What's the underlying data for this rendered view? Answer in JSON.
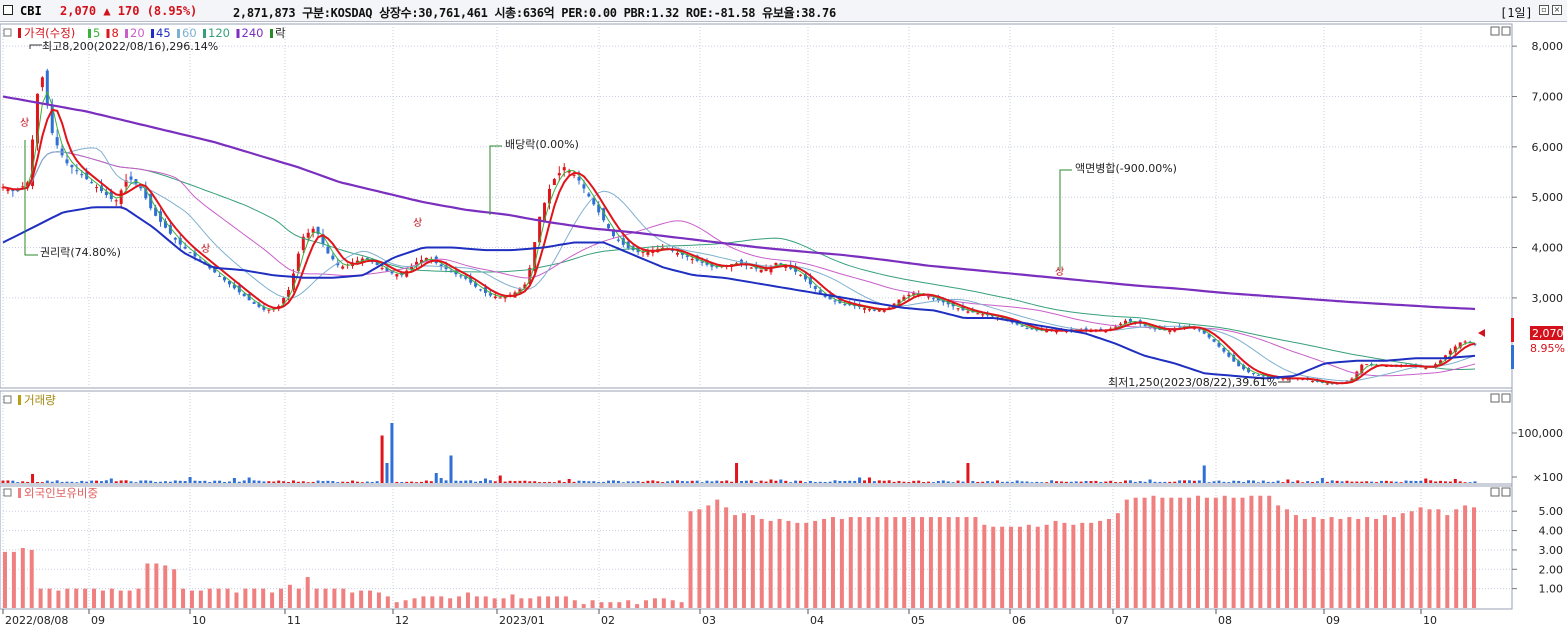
{
  "header": {
    "ticker": "CBI",
    "price_text": "2,070 ▲ 170 (8.95%)",
    "info_text": "2,871,873  구분:KOSDAQ 상장수:30,761,461 시총:636억 PER:0.00 PBR:1.32 ROE:-81.58 유보율:38.76",
    "period": "[1일]",
    "price_color": "#d3111b"
  },
  "legend": {
    "price_label": "가격(수정)",
    "ma_labels": [
      "5",
      "8",
      "20",
      "45",
      "60",
      "120",
      "240"
    ],
    "ma_colors": [
      "#3bb13b",
      "#e0141b",
      "#c95fc9",
      "#1f2fbf",
      "#7fb0cf",
      "#37a07a",
      "#7a2fbf"
    ],
    "fall_label": "락",
    "volume_label": "거래량",
    "foreign_label": "외국인보유비중"
  },
  "annotations": {
    "high": "최고8,200(2022/08/16),296.14%",
    "low": "최저1,250(2023/08/22),39.61%",
    "rights": "권리락(74.80%)",
    "dividend": "배당락(0.00%)",
    "par_merge": "액면병합(-900.00%)",
    "up_marker": "상"
  },
  "right_box": {
    "price": "2,070",
    "percent": "8.95%"
  },
  "colors": {
    "up": "#e0141b",
    "down": "#2f6fd6",
    "foreign_bar": "#f07f7f",
    "grid": "#c9cfe3"
  },
  "chart_data": [
    {
      "type": "line",
      "name": "price panel",
      "x_tick_labels": [
        "2022/08/08",
        "09",
        "10",
        "11",
        "12",
        "2023/01",
        "02",
        "03",
        "04",
        "05",
        "06",
        "07",
        "08",
        "09",
        "10"
      ],
      "y_tick_labels": [
        "8,000",
        "7,000",
        "6,000",
        "5,000",
        "4,000",
        "3,000"
      ],
      "ylim": [
        1250,
        8400
      ],
      "close_approx": [
        5200,
        5100,
        5300,
        7600,
        6200,
        5700,
        5500,
        5300,
        5100,
        4900,
        5400,
        5200,
        4700,
        4400,
        4100,
        3900,
        3700,
        3500,
        3300,
        3100,
        2900,
        2750,
        2800,
        3200,
        4200,
        4400,
        3900,
        3600,
        3700,
        3800,
        3650,
        3500,
        3450,
        3700,
        3800,
        3650,
        3500,
        3400,
        3200,
        3050,
        3000,
        3100,
        3300,
        4600,
        5300,
        5600,
        5400,
        5000,
        4600,
        4200,
        4000,
        3900,
        3950,
        4000,
        3900,
        3800,
        3700,
        3600,
        3650,
        3700,
        3600,
        3550,
        3700,
        3600,
        3450,
        3200,
        3000,
        2900,
        2850,
        2800,
        2750,
        2800,
        3000,
        3100,
        3050,
        2950,
        2850,
        2750,
        2700,
        2650,
        2600,
        2500,
        2400,
        2350,
        2350,
        2350,
        2350,
        2350,
        2350,
        2400,
        2550,
        2500,
        2400,
        2350,
        2400,
        2450,
        2350,
        2150,
        1900,
        1650,
        1500,
        1450,
        1400,
        1400,
        1400,
        1350,
        1300,
        1300,
        1350,
        1700,
        1650,
        1650,
        1650,
        1650,
        1600,
        1700,
        1950,
        2150,
        2070
      ],
      "ma240_approx": [
        7000,
        6850,
        6700,
        6500,
        6300,
        6100,
        5850,
        5600,
        5300,
        5100,
        4900,
        4750,
        4650,
        4500,
        4380,
        4300,
        4200,
        4100,
        4000,
        3920,
        3850,
        3750,
        3640,
        3560,
        3480,
        3400,
        3320,
        3240,
        3180,
        3100,
        3040,
        2980,
        2920,
        2870,
        2820,
        2780
      ],
      "ma45_approx": [
        4100,
        4400,
        4700,
        4800,
        4800,
        4400,
        3900,
        3600,
        3550,
        3450,
        3400,
        3400,
        3450,
        3800,
        4000,
        4000,
        3950,
        3950,
        4000,
        4100,
        4100,
        3850,
        3600,
        3450,
        3400,
        3300,
        3200,
        3100,
        3000,
        2900,
        2800,
        2750,
        2600,
        2600,
        2500,
        2400,
        2300,
        2100,
        1850,
        1700,
        1500,
        1450,
        1400,
        1450,
        1700,
        1750,
        1750,
        1800,
        1800,
        1850
      ]
    },
    {
      "type": "bar",
      "name": "volume panel",
      "y_tick_labels": [
        "100,000",
        "×100"
      ],
      "ylim": [
        0,
        180000
      ]
    },
    {
      "type": "bar",
      "name": "foreign ownership panel",
      "y_tick_labels": [
        "5.00",
        "4.00",
        "3.00",
        "2.00",
        "1.00"
      ],
      "ylim": [
        0,
        6.2
      ],
      "values_approx": [
        2.9,
        2.9,
        3.1,
        3.0,
        1.0,
        1.0,
        0.9,
        1.0,
        1.0,
        1.0,
        1.0,
        0.9,
        1.0,
        0.9,
        0.9,
        1.0,
        2.3,
        2.3,
        2.2,
        2.0,
        1.0,
        0.9,
        0.9,
        1.0,
        1.0,
        1.0,
        0.8,
        1.0,
        1.0,
        1.0,
        0.8,
        1.0,
        1.2,
        1.0,
        1.6,
        1.0,
        1.0,
        1.0,
        1.0,
        0.8,
        0.9,
        0.9,
        0.8,
        0.6,
        0.3,
        0.4,
        0.5,
        0.6,
        0.6,
        0.6,
        0.5,
        0.6,
        0.8,
        0.6,
        0.6,
        0.5,
        0.5,
        0.7,
        0.5,
        0.5,
        0.6,
        0.6,
        0.6,
        0.6,
        0.4,
        0.2,
        0.4,
        0.3,
        0.3,
        0.3,
        0.4,
        0.2,
        0.4,
        0.5,
        0.5,
        0.4,
        0.3,
        5.0,
        5.1,
        5.3,
        5.6,
        5.2,
        4.8,
        4.9,
        4.8,
        4.6,
        4.5,
        4.6,
        4.5,
        4.4,
        4.4,
        4.5,
        4.6,
        4.7,
        4.6,
        4.7,
        4.7,
        4.7,
        4.7,
        4.7,
        4.7,
        4.7,
        4.7,
        4.7,
        4.7,
        4.7,
        4.7,
        4.7,
        4.7,
        4.7,
        4.3,
        4.2,
        4.2,
        4.2,
        4.2,
        4.3,
        4.2,
        4.3,
        4.5,
        4.4,
        4.3,
        4.4,
        4.4,
        4.5,
        4.6,
        4.9,
        5.6,
        5.7,
        5.7,
        5.8,
        5.7,
        5.7,
        5.7,
        5.7,
        5.8,
        5.7,
        5.7,
        5.8,
        5.7,
        5.7,
        5.8,
        5.8,
        5.8,
        5.3,
        5.1,
        4.8,
        4.6,
        4.7,
        4.6,
        4.7,
        4.6,
        4.7,
        4.6,
        4.7,
        4.6,
        4.8,
        4.7,
        4.9,
        5.0,
        5.2,
        5.1,
        5.1,
        4.8,
        5.1,
        5.3,
        5.2
      ]
    }
  ]
}
